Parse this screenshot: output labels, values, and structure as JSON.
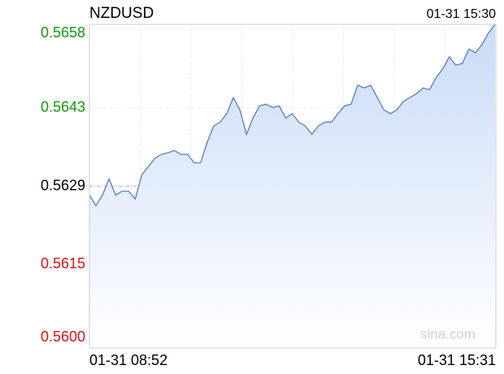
{
  "chart_data": {
    "type": "line",
    "title": "NZDUSD",
    "time_label": "01-31 15:30",
    "watermark": "sina.com",
    "categories": [
      "01-31 08:52",
      null,
      null,
      null,
      null,
      null,
      null,
      null,
      null,
      null,
      null,
      null,
      null,
      null,
      null,
      null,
      null,
      null,
      null,
      null,
      null,
      null,
      null,
      null,
      null,
      null,
      null,
      null,
      null,
      null,
      null,
      null,
      null,
      null,
      null,
      null,
      null,
      null,
      null,
      null,
      null,
      null,
      null,
      null,
      null,
      null,
      null,
      null,
      null,
      null,
      null,
      null,
      null,
      null,
      null,
      null,
      null,
      null,
      null,
      null,
      null,
      null,
      "01-31 15:31"
    ],
    "values": [
      0.56274,
      0.56255,
      0.56274,
      0.56303,
      0.56274,
      0.56281,
      0.56281,
      0.56267,
      0.5631,
      0.56325,
      0.5634,
      0.56347,
      0.5635,
      0.56354,
      0.56347,
      0.56347,
      0.56332,
      0.56332,
      0.56369,
      0.56398,
      0.56405,
      0.5642,
      0.56449,
      0.56427,
      0.56383,
      0.56412,
      0.56434,
      0.56437,
      0.56431,
      0.56434,
      0.56412,
      0.5642,
      0.56405,
      0.56398,
      0.56383,
      0.56398,
      0.56405,
      0.56405,
      0.5642,
      0.56434,
      0.56437,
      0.56471,
      0.56466,
      0.56471,
      0.56449,
      0.56427,
      0.5642,
      0.56427,
      0.56442,
      0.56449,
      0.56456,
      0.56466,
      0.56463,
      0.56485,
      0.565,
      0.56522,
      0.56507,
      0.5651,
      0.56536,
      0.56529,
      0.56544,
      0.56565,
      0.5658
    ],
    "color": "#4a76c0",
    "fill_color": "#d3e2fa",
    "ylim": [
      0.56,
      0.5658
    ],
    "yticks": [
      0.5658,
      0.5643,
      0.5629,
      0.5615,
      {
        "value": 0.56,
        "label": "0.5600"
      }
    ],
    "ytick_colors": [
      "#119911",
      "#119911",
      "#000000",
      "#dd1111",
      "#dd1111"
    ],
    "grid": true
  }
}
